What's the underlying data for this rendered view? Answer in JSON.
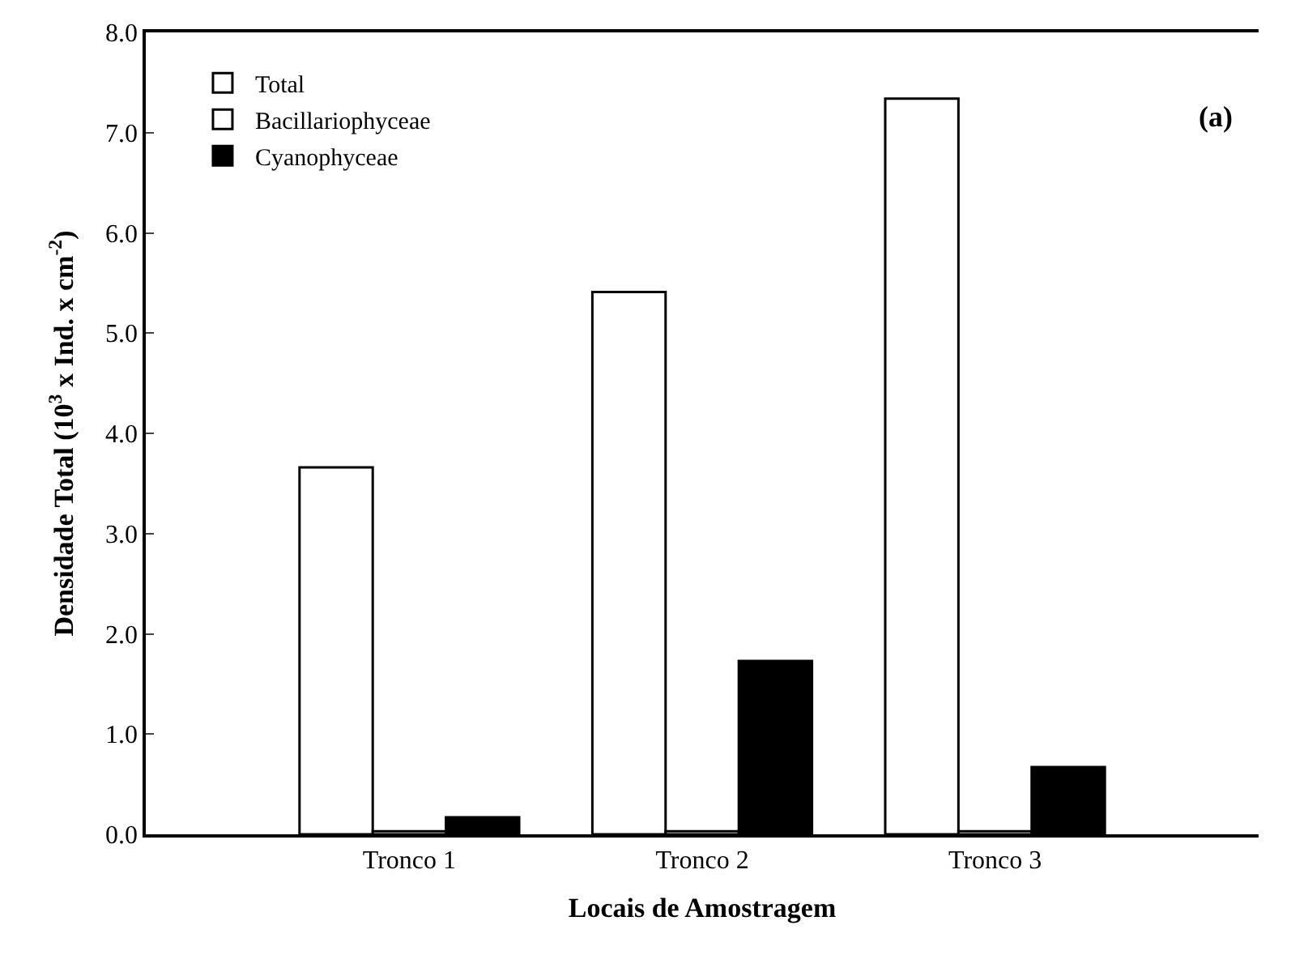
{
  "chart_data": {
    "type": "bar",
    "xlabel": "Locais de Amostragem",
    "ylabel": "Densidade Total (10$^{3}$ x Ind. x cm$^{-2}$)",
    "categories": [
      "Tronco 1",
      "Tronco 2",
      "Tronco 3"
    ],
    "series": [
      {
        "name": "Total",
        "color": "#ffffff",
        "values": [
          3.66,
          5.41,
          7.34
        ]
      },
      {
        "name": "Bacillariophyceae",
        "color": "#ffffff",
        "values": [
          0.03,
          0.03,
          0.03
        ]
      },
      {
        "name": "Cyanophyceae",
        "color": "#000000",
        "values": [
          0.17,
          1.73,
          0.67
        ]
      }
    ],
    "ylim": [
      0,
      8
    ],
    "yticks": [
      {
        "value": 0,
        "label": "0.0"
      },
      {
        "value": 1,
        "label": "1.0"
      },
      {
        "value": 2,
        "label": "2.0"
      },
      {
        "value": 3,
        "label": "3.0"
      },
      {
        "value": 4,
        "label": "4.0"
      },
      {
        "value": 5,
        "label": "5.0"
      },
      {
        "value": 6,
        "label": "6.0"
      },
      {
        "value": 7,
        "label": "7.0"
      },
      {
        "value": 8,
        "label": "8.0"
      }
    ],
    "annotations": [
      "(a)"
    ],
    "legend": "top left"
  }
}
